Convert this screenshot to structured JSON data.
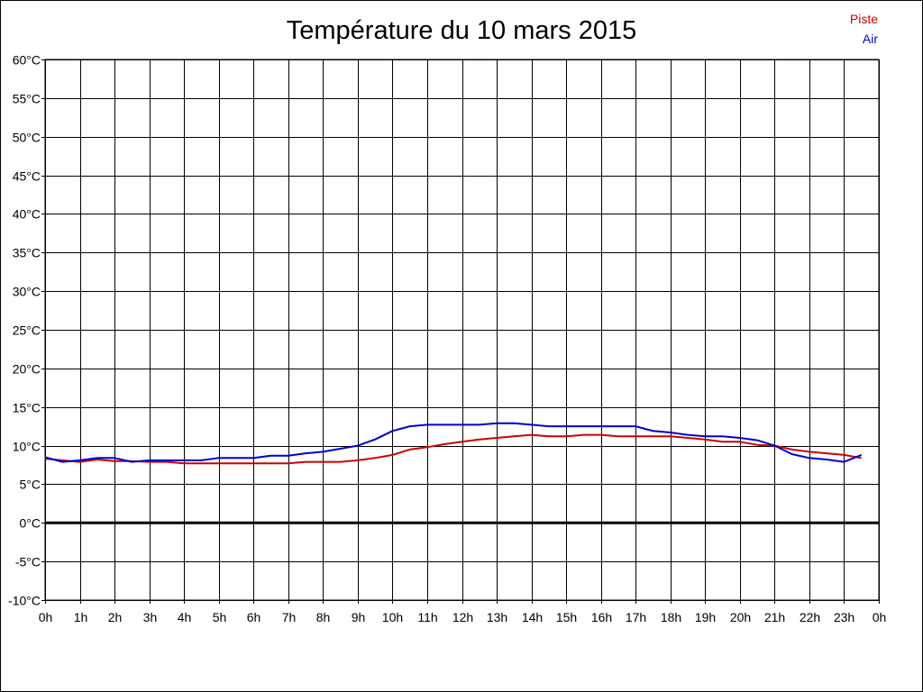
{
  "chart_data": {
    "type": "line",
    "title": "Température du 10 mars 2015",
    "xlabel": "",
    "ylabel": "",
    "x_ticks": [
      "0h",
      "1h",
      "2h",
      "3h",
      "4h",
      "5h",
      "6h",
      "7h",
      "8h",
      "9h",
      "10h",
      "11h",
      "12h",
      "13h",
      "14h",
      "15h",
      "16h",
      "17h",
      "18h",
      "19h",
      "20h",
      "21h",
      "22h",
      "23h",
      "0h"
    ],
    "y_ticks": [
      "60°C",
      "55°C",
      "50°C",
      "45°C",
      "40°C",
      "35°C",
      "30°C",
      "25°C",
      "20°C",
      "15°C",
      "10°C",
      "5°C",
      "0°C",
      "-5°C",
      "-10°C"
    ],
    "xlim": [
      0,
      24
    ],
    "ylim": [
      -10,
      60
    ],
    "grid": true,
    "legend_position": "top-right",
    "series": [
      {
        "name": "Piste",
        "color": "#cc0000",
        "x": [
          0,
          0.5,
          1,
          1.5,
          2,
          2.5,
          3,
          3.5,
          4,
          4.5,
          5,
          5.5,
          6,
          6.5,
          7,
          7.5,
          8,
          8.5,
          9,
          9.5,
          10,
          10.5,
          11,
          11.5,
          12,
          12.5,
          13,
          13.5,
          14,
          14.5,
          15,
          15.5,
          16,
          16.5,
          17,
          17.5,
          18,
          18.5,
          19,
          19.5,
          20,
          20.5,
          21,
          21.5,
          22,
          22.5,
          23,
          23.5
        ],
        "values": [
          8.3,
          8.1,
          7.9,
          8.2,
          8.0,
          8.0,
          7.9,
          7.9,
          7.7,
          7.7,
          7.7,
          7.7,
          7.7,
          7.7,
          7.7,
          7.9,
          7.9,
          7.9,
          8.1,
          8.4,
          8.8,
          9.5,
          9.8,
          10.2,
          10.5,
          10.8,
          11.0,
          11.2,
          11.4,
          11.2,
          11.2,
          11.4,
          11.4,
          11.2,
          11.2,
          11.2,
          11.2,
          11.0,
          10.8,
          10.5,
          10.5,
          10.1,
          10.0,
          9.5,
          9.2,
          9.0,
          8.8,
          8.4
        ]
      },
      {
        "name": "Air",
        "color": "#0000cc",
        "x": [
          0,
          0.5,
          1,
          1.5,
          2,
          2.5,
          3,
          3.5,
          4,
          4.5,
          5,
          5.5,
          6,
          6.5,
          7,
          7.5,
          8,
          8.5,
          9,
          9.5,
          10,
          10.5,
          11,
          11.5,
          12,
          12.5,
          13,
          13.5,
          14,
          14.5,
          15,
          15.5,
          16,
          16.5,
          17,
          17.5,
          18,
          18.5,
          19,
          19.5,
          20,
          20.5,
          21,
          21.5,
          22,
          22.5,
          23,
          23.5
        ],
        "values": [
          8.5,
          7.9,
          8.1,
          8.4,
          8.4,
          7.9,
          8.1,
          8.1,
          8.1,
          8.1,
          8.4,
          8.4,
          8.4,
          8.7,
          8.7,
          9.0,
          9.2,
          9.6,
          10.0,
          10.8,
          11.9,
          12.5,
          12.7,
          12.7,
          12.7,
          12.7,
          12.9,
          12.9,
          12.7,
          12.5,
          12.5,
          12.5,
          12.5,
          12.5,
          12.5,
          11.9,
          11.7,
          11.4,
          11.2,
          11.2,
          11.0,
          10.7,
          10.0,
          8.9,
          8.4,
          8.2,
          7.9,
          8.8
        ]
      }
    ]
  }
}
